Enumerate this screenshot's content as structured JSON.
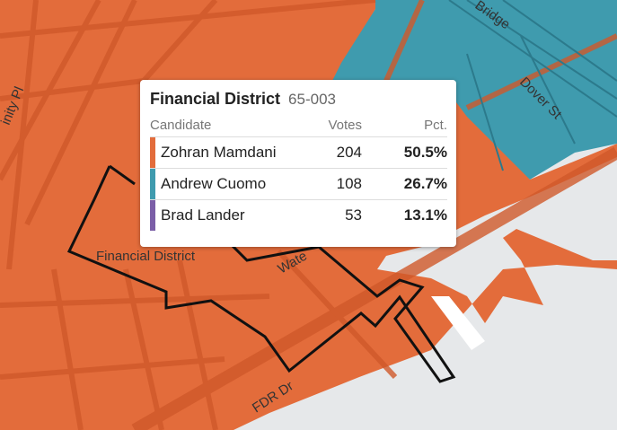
{
  "map": {
    "colors": {
      "mamdani": "#e36c3b",
      "cuomo": "#3f9bae",
      "land": "#e6e8ea",
      "road": "#d0592a"
    },
    "labels": {
      "trinity": "inity Pl",
      "bridge": "Bridge",
      "dover": "Dover St",
      "district": "Financial District",
      "water": "Wate",
      "fdr": "FDR Dr"
    }
  },
  "tooltip": {
    "district": "Financial District",
    "precinct": "65-003",
    "columns": {
      "candidate": "Candidate",
      "votes": "Votes",
      "pct": "Pct."
    },
    "rows": [
      {
        "name": "Zohran Mamdani",
        "votes": "204",
        "pct": "50.5%",
        "color": "#e36c3b"
      },
      {
        "name": "Andrew Cuomo",
        "votes": "108",
        "pct": "26.7%",
        "color": "#3f9bae"
      },
      {
        "name": "Brad Lander",
        "votes": "53",
        "pct": "13.1%",
        "color": "#7b5ea7"
      }
    ]
  }
}
